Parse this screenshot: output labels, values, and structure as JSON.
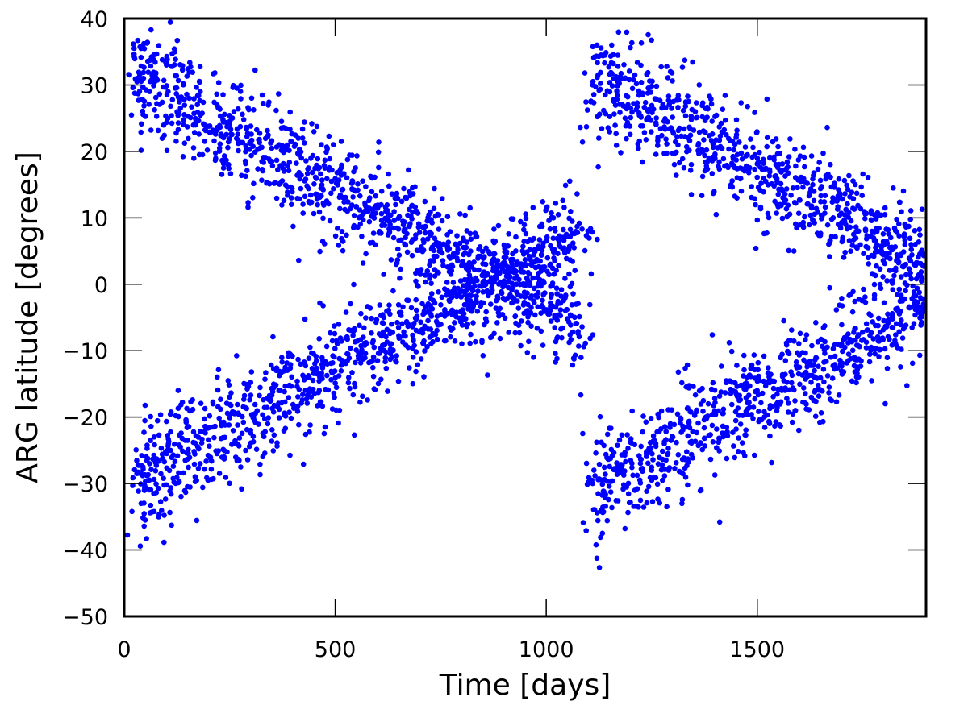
{
  "chart_data": {
    "type": "scatter",
    "title": "",
    "xlabel": "Time [days]",
    "ylabel": "ARG latitude [degrees]",
    "xlim": [
      0,
      1900
    ],
    "ylim": [
      -50,
      40
    ],
    "xticks": [
      0,
      500,
      1000,
      1500
    ],
    "xtick_labels": [
      "0",
      "500",
      "1000",
      "1500"
    ],
    "yticks": [
      -50,
      -40,
      -30,
      -20,
      -10,
      0,
      10,
      20,
      30,
      40
    ],
    "ytick_labels": [
      "−50",
      "−40",
      "−30",
      "−20",
      "−10",
      "0",
      "10",
      "20",
      "30",
      "40"
    ],
    "grid": false,
    "legend": "none",
    "marker_color": "#0000ff",
    "series": [
      {
        "x": [
          30,
          45,
          60,
          75,
          90,
          110,
          130,
          150,
          170,
          190,
          210,
          230,
          250,
          270,
          290,
          310,
          330,
          350,
          370,
          390,
          410,
          430,
          450,
          470,
          490,
          510,
          530,
          550,
          570,
          590,
          610,
          630,
          650,
          670,
          690,
          710,
          730,
          750,
          770,
          790,
          810,
          830,
          850,
          870,
          890,
          910,
          930,
          950,
          970,
          990,
          1010,
          1030,
          1050,
          1070,
          1085,
          40,
          70,
          100,
          140,
          180,
          220,
          260,
          300,
          340,
          380,
          420,
          460,
          500,
          540,
          580,
          620,
          660,
          700,
          740,
          780,
          820,
          860,
          900,
          940,
          980,
          1020,
          30,
          45,
          60,
          75,
          90,
          110,
          130,
          150,
          170,
          190,
          210,
          230,
          250,
          270,
          290,
          310,
          330,
          350,
          370,
          390,
          410,
          430,
          450,
          470,
          490,
          510,
          530,
          550,
          570,
          590,
          610,
          630,
          650,
          670,
          690,
          710,
          730,
          750,
          770,
          790,
          810,
          830,
          850,
          870,
          890,
          910,
          930,
          950,
          970,
          990,
          1010,
          1030,
          1050,
          1070,
          1085,
          40,
          70,
          100,
          140,
          180,
          220,
          260,
          300,
          340,
          380,
          420,
          460,
          500,
          540,
          580,
          620,
          660,
          700,
          740,
          780,
          820,
          860,
          900,
          940,
          980,
          1020,
          1110,
          1125,
          1140,
          1160,
          1180,
          1200,
          1220,
          1240,
          1260,
          1280,
          1300,
          1320,
          1340,
          1360,
          1380,
          1400,
          1420,
          1440,
          1460,
          1480,
          1500,
          1520,
          1540,
          1560,
          1580,
          1600,
          1620,
          1640,
          1660,
          1680,
          1700,
          1720,
          1740,
          1760,
          1780,
          1800,
          1820,
          1840,
          1860,
          1880,
          1895,
          1130,
          1170,
          1210,
          1250,
          1290,
          1330,
          1370,
          1410,
          1450,
          1490,
          1530,
          1570,
          1610,
          1650,
          1690,
          1730,
          1770,
          1810,
          1850,
          1890,
          1110,
          1125,
          1140,
          1160,
          1180,
          1200,
          1220,
          1240,
          1260,
          1280,
          1300,
          1320,
          1340,
          1360,
          1380,
          1400,
          1420,
          1440,
          1460,
          1480,
          1500,
          1520,
          1540,
          1560,
          1580,
          1600,
          1620,
          1640,
          1660,
          1680,
          1700,
          1720,
          1740,
          1760,
          1780,
          1800,
          1820,
          1840,
          1860,
          1880,
          1895,
          1130,
          1170,
          1210,
          1250,
          1290,
          1330,
          1370,
          1410,
          1450,
          1490,
          1530,
          1570,
          1610,
          1650,
          1690,
          1730,
          1770,
          1810,
          1850,
          1890
        ],
        "y": [
          30.5,
          29.6,
          29.0,
          28.1,
          27.4,
          26.8,
          26.0,
          25.3,
          24.6,
          24.0,
          23.2,
          22.6,
          21.9,
          21.2,
          20.5,
          19.9,
          19.1,
          18.5,
          17.8,
          17.1,
          16.4,
          15.8,
          15.1,
          14.4,
          13.7,
          13.1,
          12.4,
          11.7,
          11.0,
          10.3,
          9.6,
          9.0,
          8.3,
          7.6,
          6.9,
          6.3,
          5.6,
          4.9,
          4.2,
          3.5,
          2.9,
          2.2,
          1.5,
          0.8,
          0.2,
          -0.5,
          -1.2,
          -1.9,
          -2.5,
          -3.2,
          -3.9,
          -4.6,
          -5.2,
          -5.9,
          -6.4,
          35.5,
          33.8,
          33.0,
          30.2,
          29.0,
          27.0,
          26.0,
          23.8,
          22.2,
          20.7,
          19.0,
          17.4,
          15.9,
          14.3,
          12.6,
          11.0,
          9.5,
          7.8,
          6.3,
          4.6,
          3.0,
          1.4,
          -0.2,
          -1.8,
          -3.4,
          -5.0,
          -28.5,
          -27.8,
          -27.0,
          -26.3,
          -25.6,
          -25.0,
          -24.2,
          -23.5,
          -22.8,
          -22.2,
          -21.5,
          -20.8,
          -20.1,
          -19.4,
          -18.7,
          -18.1,
          -17.4,
          -16.7,
          -16.0,
          -15.3,
          -14.6,
          -14.0,
          -13.3,
          -12.6,
          -11.9,
          -11.2,
          -10.5,
          -9.9,
          -9.2,
          -8.5,
          -7.8,
          -7.1,
          -6.5,
          -5.8,
          -5.1,
          -4.4,
          -3.7,
          -3.1,
          -2.4,
          -1.7,
          -1.0,
          -0.3,
          0.3,
          1.0,
          1.7,
          2.4,
          3.0,
          3.7,
          4.4,
          5.1,
          5.8,
          6.5,
          7.2,
          7.9,
          8.3,
          -33.0,
          -31.5,
          -30.2,
          -28.4,
          -27.0,
          -25.5,
          -24.0,
          -22.4,
          -21.0,
          -19.4,
          -17.9,
          -16.3,
          -14.9,
          -13.3,
          -11.8,
          -10.2,
          -8.7,
          -7.2,
          -5.6,
          -4.2,
          -2.6,
          -1.0,
          0.5,
          2.0,
          3.6,
          5.2,
          30.0,
          29.2,
          28.5,
          27.8,
          27.1,
          26.5,
          25.8,
          25.0,
          24.3,
          23.7,
          23.0,
          22.3,
          21.6,
          20.9,
          20.2,
          19.6,
          18.9,
          18.2,
          17.5,
          16.8,
          16.1,
          15.5,
          14.8,
          14.1,
          13.4,
          12.7,
          12.1,
          11.4,
          10.7,
          10.0,
          9.3,
          8.6,
          8.0,
          7.3,
          6.6,
          5.9,
          5.2,
          4.5,
          3.9,
          3.2,
          2.7,
          34.5,
          32.8,
          31.5,
          29.8,
          28.3,
          26.8,
          25.2,
          23.7,
          22.1,
          20.6,
          19.0,
          17.5,
          15.9,
          14.4,
          12.8,
          11.3,
          9.7,
          8.2,
          6.6,
          5.1,
          -30.0,
          -29.3,
          -28.6,
          -27.9,
          -27.2,
          -26.5,
          -25.8,
          -25.1,
          -24.4,
          -23.7,
          -23.0,
          -22.3,
          -21.6,
          -20.9,
          -20.2,
          -19.5,
          -18.8,
          -18.1,
          -17.4,
          -16.7,
          -16.0,
          -15.3,
          -14.6,
          -13.9,
          -13.2,
          -12.5,
          -11.8,
          -11.1,
          -10.4,
          -9.7,
          -9.0,
          -8.3,
          -7.6,
          -6.9,
          -6.2,
          -5.5,
          -4.8,
          -4.1,
          -3.4,
          -2.7,
          -2.2,
          -34.0,
          -32.6,
          -31.0,
          -29.5,
          -28.0,
          -26.4,
          -24.9,
          -23.3,
          -21.8,
          -20.2,
          -18.7,
          -17.2,
          -15.6,
          -14.1,
          -12.6,
          -11.0,
          -9.5,
          -7.9,
          -6.4,
          -4.9
        ]
      }
    ]
  }
}
